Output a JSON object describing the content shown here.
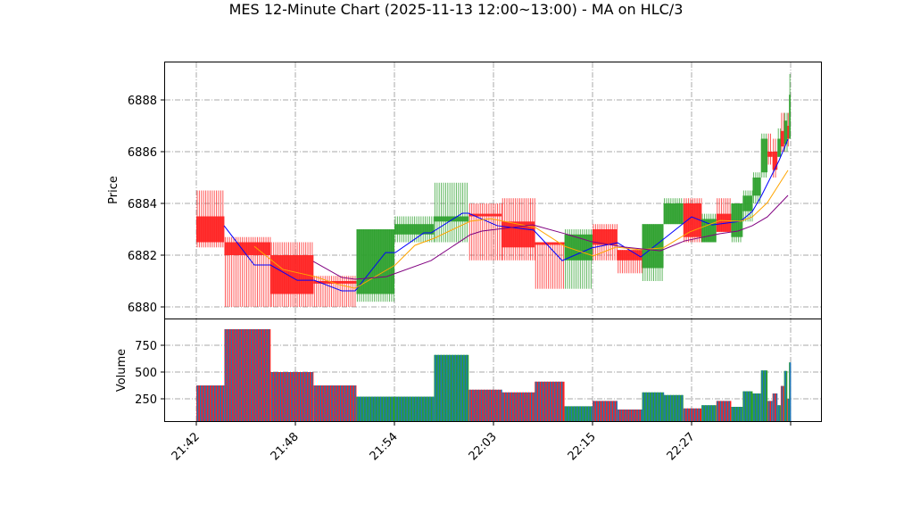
{
  "chart_data": {
    "type": "candlestick",
    "title": "MES 12-Minute Chart (2025-11-13 12:00~13:00) - MA on HLC/3",
    "price_panel": {
      "ylabel": "Price",
      "ylim": [
        6879.5,
        6889.5
      ],
      "yticks": [
        6880,
        6882,
        6884,
        6886,
        6888
      ]
    },
    "volume_panel": {
      "ylabel": "Volume",
      "ylim": [
        0,
        970
      ],
      "yticks": [
        250,
        500,
        750
      ]
    },
    "x_ticks": [
      {
        "idx": 0,
        "label": "21:42"
      },
      {
        "idx": 60,
        "label": "21:48"
      },
      {
        "idx": 120,
        "label": "21:54"
      },
      {
        "idx": 180,
        "label": "22:03"
      },
      {
        "idx": 240,
        "label": "22:15"
      },
      {
        "idx": 300,
        "label": "22:27"
      },
      {
        "idx": 360,
        "label": ""
      }
    ],
    "grid": true,
    "colors": {
      "up": "#2ca02c",
      "down": "#ff2020",
      "volume_stripe": "#1f77b4",
      "ma_fast": "#0000ff",
      "ma_mid": "#ffa500",
      "ma_slow": "#800080"
    },
    "bars": [
      {
        "from": 0,
        "to": 17,
        "o": 6883.5,
        "h": 6884.5,
        "l": 6882.3,
        "c": 6882.5,
        "v": 375
      },
      {
        "from": 17,
        "to": 45,
        "o": 6882.5,
        "h": 6882.7,
        "l": 6880.0,
        "c": 6882.0,
        "v": 900
      },
      {
        "from": 45,
        "to": 71,
        "o": 6882.0,
        "h": 6882.5,
        "l": 6880.0,
        "c": 6880.5,
        "v": 500
      },
      {
        "from": 71,
        "to": 97,
        "o": 6881.0,
        "h": 6881.2,
        "l": 6880.0,
        "c": 6880.9,
        "v": 375
      },
      {
        "from": 97,
        "to": 120,
        "o": 6880.5,
        "h": 6883.0,
        "l": 6880.2,
        "c": 6883.0,
        "v": 270
      },
      {
        "from": 120,
        "to": 144,
        "o": 6882.8,
        "h": 6883.5,
        "l": 6882.5,
        "c": 6883.2,
        "v": 270
      },
      {
        "from": 144,
        "to": 165,
        "o": 6883.3,
        "h": 6884.8,
        "l": 6882.5,
        "c": 6883.5,
        "v": 660
      },
      {
        "from": 165,
        "to": 185,
        "o": 6883.6,
        "h": 6884.0,
        "l": 6881.8,
        "c": 6883.5,
        "v": 335
      },
      {
        "from": 185,
        "to": 205,
        "o": 6883.3,
        "h": 6884.2,
        "l": 6881.8,
        "c": 6882.3,
        "v": 310
      },
      {
        "from": 205,
        "to": 223,
        "o": 6882.5,
        "h": 6882.5,
        "l": 6880.7,
        "c": 6882.4,
        "v": 410
      },
      {
        "from": 223,
        "to": 240,
        "o": 6881.8,
        "h": 6883.0,
        "l": 6880.7,
        "c": 6882.8,
        "v": 180
      },
      {
        "from": 240,
        "to": 255,
        "o": 6883.0,
        "h": 6883.2,
        "l": 6881.8,
        "c": 6882.4,
        "v": 230
      },
      {
        "from": 255,
        "to": 270,
        "o": 6882.2,
        "h": 6882.2,
        "l": 6881.3,
        "c": 6881.8,
        "v": 150
      },
      {
        "from": 270,
        "to": 283,
        "o": 6881.5,
        "h": 6883.2,
        "l": 6881.0,
        "c": 6883.2,
        "v": 310
      },
      {
        "from": 283,
        "to": 295,
        "o": 6883.2,
        "h": 6884.2,
        "l": 6883.2,
        "c": 6884.0,
        "v": 285
      },
      {
        "from": 295,
        "to": 306,
        "o": 6884.0,
        "h": 6884.2,
        "l": 6882.5,
        "c": 6882.7,
        "v": 160
      },
      {
        "from": 306,
        "to": 315,
        "o": 6882.5,
        "h": 6883.6,
        "l": 6882.5,
        "c": 6883.4,
        "v": 190
      },
      {
        "from": 315,
        "to": 324,
        "o": 6883.6,
        "h": 6884.2,
        "l": 6882.9,
        "c": 6882.9,
        "v": 230
      },
      {
        "from": 324,
        "to": 331,
        "o": 6882.7,
        "h": 6884.0,
        "l": 6882.5,
        "c": 6884.0,
        "v": 175
      },
      {
        "from": 331,
        "to": 337,
        "o": 6883.7,
        "h": 6884.5,
        "l": 6883.3,
        "c": 6884.3,
        "v": 320
      },
      {
        "from": 337,
        "to": 342,
        "o": 6884.3,
        "h": 6885.2,
        "l": 6884.0,
        "c": 6885.0,
        "v": 300
      },
      {
        "from": 342,
        "to": 346,
        "o": 6885.2,
        "h": 6886.7,
        "l": 6885.0,
        "c": 6886.5,
        "v": 515
      },
      {
        "from": 346,
        "to": 349,
        "o": 6886.0,
        "h": 6886.7,
        "l": 6885.5,
        "c": 6885.8,
        "v": 230
      },
      {
        "from": 349,
        "to": 352,
        "o": 6886.0,
        "h": 6886.5,
        "l": 6885.0,
        "c": 6885.3,
        "v": 300
      },
      {
        "from": 352,
        "to": 354,
        "o": 6885.8,
        "h": 6886.9,
        "l": 6885.8,
        "c": 6886.5,
        "v": 190
      },
      {
        "from": 354,
        "to": 356,
        "o": 6886.8,
        "h": 6887.5,
        "l": 6886.0,
        "c": 6886.2,
        "v": 370
      },
      {
        "from": 356,
        "to": 358,
        "o": 6886.3,
        "h": 6887.5,
        "l": 6886.0,
        "c": 6887.2,
        "v": 510
      },
      {
        "from": 358,
        "to": 359,
        "o": 6887.0,
        "h": 6887.5,
        "l": 6886.2,
        "c": 6886.5,
        "v": 250
      },
      {
        "from": 359,
        "to": 360,
        "o": 6886.5,
        "h": 6889.0,
        "l": 6886.5,
        "c": 6888.2,
        "v": 590
      }
    ],
    "ma_series": [
      {
        "name": "ma_fast",
        "color": "#0000ff",
        "points": [
          [
            16.8,
            6883.14
          ],
          [
            35.1,
            6881.62
          ],
          [
            44.9,
            6881.62
          ],
          [
            61.1,
            6881.03
          ],
          [
            71.4,
            6881.03
          ],
          [
            88.1,
            6880.62
          ],
          [
            96.2,
            6880.62
          ],
          [
            114.6,
            6882.1
          ],
          [
            120.5,
            6882.1
          ],
          [
            137.8,
            6882.86
          ],
          [
            142.2,
            6882.86
          ],
          [
            161.1,
            6883.62
          ],
          [
            164.9,
            6883.62
          ],
          [
            182.2,
            6883.14
          ],
          [
            204.3,
            6882.97
          ],
          [
            221.6,
            6881.79
          ],
          [
            239.5,
            6882.28
          ],
          [
            255.1,
            6882.48
          ],
          [
            269.2,
            6881.93
          ],
          [
            283.8,
            6882.66
          ],
          [
            300.0,
            6883.48
          ],
          [
            312.4,
            6883.17
          ],
          [
            329.7,
            6883.31
          ],
          [
            336.8,
            6883.69
          ],
          [
            342.2,
            6884.28
          ],
          [
            353.0,
            6885.66
          ],
          [
            358.4,
            6886.48
          ]
        ]
      },
      {
        "name": "ma_mid",
        "color": "#ffa500",
        "points": [
          [
            35.1,
            6882.34
          ],
          [
            52.4,
            6881.45
          ],
          [
            71.9,
            6881.17
          ],
          [
            86.5,
            6880.86
          ],
          [
            96.2,
            6880.72
          ],
          [
            120.5,
            6881.62
          ],
          [
            132.4,
            6882.38
          ],
          [
            144.3,
            6882.66
          ],
          [
            165.9,
            6883.31
          ],
          [
            178.4,
            6883.41
          ],
          [
            205.4,
            6883.07
          ],
          [
            223.2,
            6882.34
          ],
          [
            240.5,
            6881.97
          ],
          [
            254.1,
            6882.31
          ],
          [
            268.6,
            6882.21
          ],
          [
            282.7,
            6882.28
          ],
          [
            298.9,
            6882.9
          ],
          [
            317.3,
            6883.34
          ],
          [
            329.7,
            6883.31
          ],
          [
            336.8,
            6883.48
          ],
          [
            345.9,
            6884.03
          ],
          [
            358.4,
            6885.28
          ]
        ]
      },
      {
        "name": "ma_slow",
        "color": "#800080",
        "points": [
          [
            70.8,
            6881.76
          ],
          [
            88.1,
            6881.14
          ],
          [
            96.2,
            6881.07
          ],
          [
            115.1,
            6881.17
          ],
          [
            142.2,
            6881.79
          ],
          [
            165.9,
            6882.79
          ],
          [
            173.0,
            6882.93
          ],
          [
            203.8,
            6883.17
          ],
          [
            223.2,
            6882.83
          ],
          [
            239.5,
            6882.52
          ],
          [
            259.5,
            6882.31
          ],
          [
            281.1,
            6882.17
          ],
          [
            295.7,
            6882.55
          ],
          [
            317.3,
            6882.83
          ],
          [
            328.1,
            6882.93
          ],
          [
            336.8,
            6883.14
          ],
          [
            345.9,
            6883.48
          ],
          [
            358.4,
            6884.31
          ]
        ]
      }
    ]
  }
}
